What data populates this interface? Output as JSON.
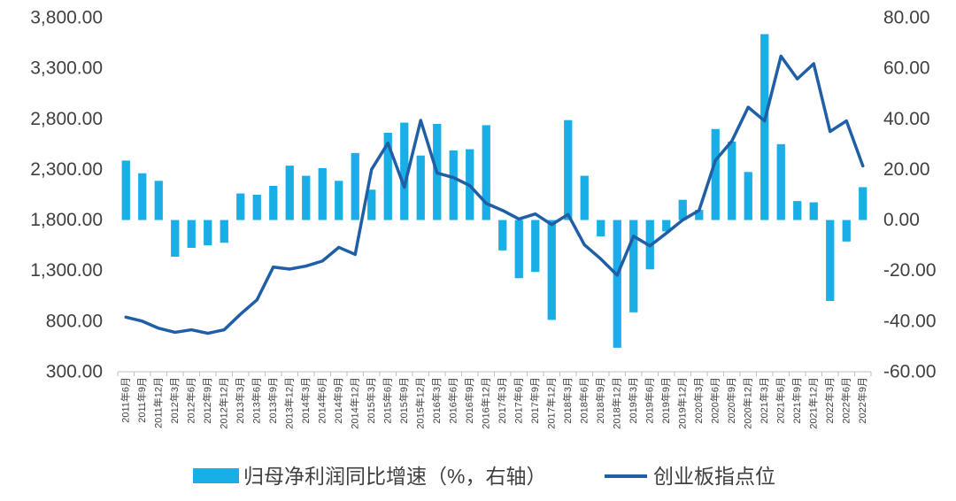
{
  "chart_data": {
    "type": "bar",
    "categories": [
      "2011年6月",
      "2011年9月",
      "2011年12月",
      "2012年3月",
      "2012年6月",
      "2012年9月",
      "2012年12月",
      "2013年3月",
      "2013年6月",
      "2013年9月",
      "2013年12月",
      "2014年3月",
      "2014年6月",
      "2014年9月",
      "2014年12月",
      "2015年3月",
      "2015年6月",
      "2015年9月",
      "2015年12月",
      "2016年3月",
      "2016年6月",
      "2016年9月",
      "2016年12月",
      "2017年3月",
      "2017年6月",
      "2017年9月",
      "2017年12月",
      "2018年3月",
      "2018年6月",
      "2018年9月",
      "2018年12月",
      "2019年3月",
      "2019年6月",
      "2019年9月",
      "2019年12月",
      "2020年3月",
      "2020年6月",
      "2020年9月",
      "2020年12月",
      "2021年3月",
      "2021年6月",
      "2021年9月",
      "2021年12月",
      "2022年3月",
      "2022年6月",
      "2022年9月"
    ],
    "series": [
      {
        "name": "归母净利润同比增速（%，右轴）",
        "type": "bar",
        "axis": "right",
        "color": "#1AAEE6",
        "values": [
          23.5,
          18.5,
          15.5,
          -14.5,
          -11,
          -10,
          -9,
          10.5,
          10,
          13.5,
          21.5,
          17.5,
          20.5,
          15.5,
          26.5,
          12,
          34.5,
          38.5,
          25.5,
          38,
          27.5,
          28,
          37.5,
          -12,
          -23,
          -20.5,
          -39.5,
          39.5,
          17.5,
          -6.5,
          -50.5,
          -36.5,
          -19.5,
          -4.5,
          8,
          4,
          36,
          31,
          19,
          73.5,
          30,
          7.5,
          7,
          -32,
          -8.5,
          13
        ]
      },
      {
        "name": "创业板指点位",
        "type": "line",
        "axis": "left",
        "color": "#1F5FA6",
        "values": [
          840,
          800,
          730,
          690,
          715,
          680,
          715,
          870,
          1010,
          1335,
          1315,
          1345,
          1395,
          1530,
          1460,
          2300,
          2560,
          2125,
          2785,
          2265,
          2220,
          2140,
          1965,
          1895,
          1810,
          1860,
          1755,
          1855,
          1555,
          1415,
          1255,
          1640,
          1545,
          1670,
          1800,
          1895,
          2390,
          2580,
          2915,
          2780,
          3420,
          3195,
          3345,
          2675,
          2780,
          2335
        ]
      }
    ],
    "y_left": {
      "min": 300,
      "max": 3800,
      "ticks": [
        {
          "value": 3800,
          "label": "3,800.00"
        },
        {
          "value": 3300,
          "label": "3,300.00"
        },
        {
          "value": 2800,
          "label": "2,800.00"
        },
        {
          "value": 2300,
          "label": "2,300.00"
        },
        {
          "value": 1800,
          "label": "1,800.00"
        },
        {
          "value": 1300,
          "label": "1,300.00"
        },
        {
          "value": 800,
          "label": "800.00"
        },
        {
          "value": 300,
          "label": "300.00"
        }
      ]
    },
    "y_right": {
      "min": -60,
      "max": 80,
      "ticks": [
        {
          "value": 80,
          "label": "80.00"
        },
        {
          "value": 60,
          "label": "60.00"
        },
        {
          "value": 40,
          "label": "40.00"
        },
        {
          "value": 20,
          "label": "20.00"
        },
        {
          "value": 0,
          "label": "0.00"
        },
        {
          "value": -20,
          "label": "-20.00"
        },
        {
          "value": -40,
          "label": "-40.00"
        },
        {
          "value": -60,
          "label": "-60.00"
        }
      ]
    },
    "grid": false,
    "legend_position": "bottom"
  },
  "colors": {
    "text": "#404040",
    "axis": "#BFBFBF"
  }
}
